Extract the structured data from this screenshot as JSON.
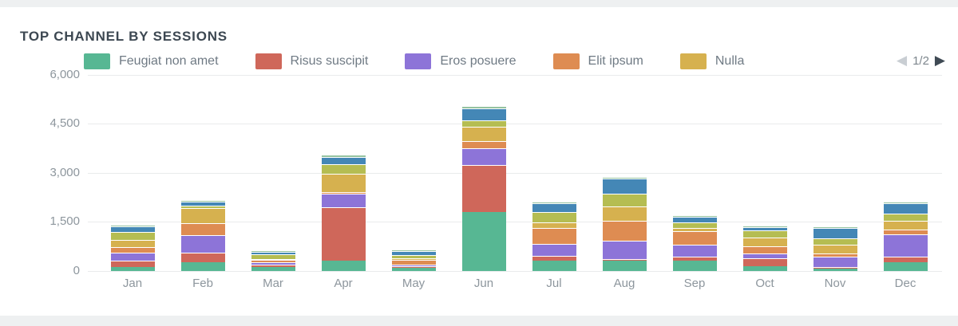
{
  "page": {
    "title": "TOP CHANNEL BY SESSIONS"
  },
  "pagination": {
    "label": "1/2",
    "prev_icon": "◀",
    "next_icon": "▶"
  },
  "chart_data": {
    "type": "bar",
    "stacked": true,
    "title": "TOP CHANNEL BY SESSIONS",
    "categories": [
      "Jan",
      "Feb",
      "Mar",
      "Apr",
      "May",
      "Jun",
      "Jul",
      "Aug",
      "Sep",
      "Oct",
      "Nov",
      "Dec"
    ],
    "ylim": [
      0,
      6000
    ],
    "y_ticks": [
      {
        "value": 0,
        "label": "0"
      },
      {
        "value": 1500,
        "label": "1,500"
      },
      {
        "value": 3000,
        "label": "3,000"
      },
      {
        "value": 4500,
        "label": "4,500"
      },
      {
        "value": 6000,
        "label": "6,000"
      }
    ],
    "grid": true,
    "legend_position": "top",
    "legend_page": "1/2",
    "series": [
      {
        "name": "Feugiat non amet",
        "color": "#57b793",
        "in_legend": true,
        "values": [
          100,
          250,
          120,
          300,
          80,
          1790,
          300,
          300,
          300,
          140,
          50,
          250
        ]
      },
      {
        "name": "Risus suscipit",
        "color": "#cf675a",
        "in_legend": true,
        "values": [
          210,
          300,
          65,
          1650,
          55,
          1440,
          150,
          50,
          120,
          240,
          70,
          180
        ]
      },
      {
        "name": "Eros posuere",
        "color": "#8d74d8",
        "in_legend": true,
        "values": [
          230,
          530,
          70,
          420,
          55,
          520,
          370,
          560,
          370,
          150,
          320,
          680
        ]
      },
      {
        "name": "Elit ipsum",
        "color": "#de8c52",
        "in_legend": true,
        "values": [
          190,
          380,
          70,
          50,
          130,
          220,
          490,
          620,
          420,
          220,
          85,
          150
        ]
      },
      {
        "name": "Nulla",
        "color": "#d6b14f",
        "in_legend": true,
        "values": [
          220,
          460,
          35,
          540,
          60,
          440,
          170,
          440,
          110,
          270,
          270,
          280
        ]
      },
      {
        "name": "olive",
        "color": "#b5bd52",
        "in_legend": false,
        "values": [
          230,
          80,
          130,
          300,
          90,
          190,
          320,
          400,
          160,
          220,
          195,
          220
        ]
      },
      {
        "name": "blue",
        "color": "#4487b6",
        "in_legend": false,
        "values": [
          180,
          120,
          95,
          230,
          130,
          380,
          260,
          460,
          180,
          90,
          310,
          300
        ]
      },
      {
        "name": "light-green",
        "color": "#95c3a0",
        "in_legend": false,
        "values": [
          50,
          40,
          30,
          60,
          40,
          60,
          60,
          50,
          50,
          50,
          55,
          60
        ]
      }
    ]
  }
}
